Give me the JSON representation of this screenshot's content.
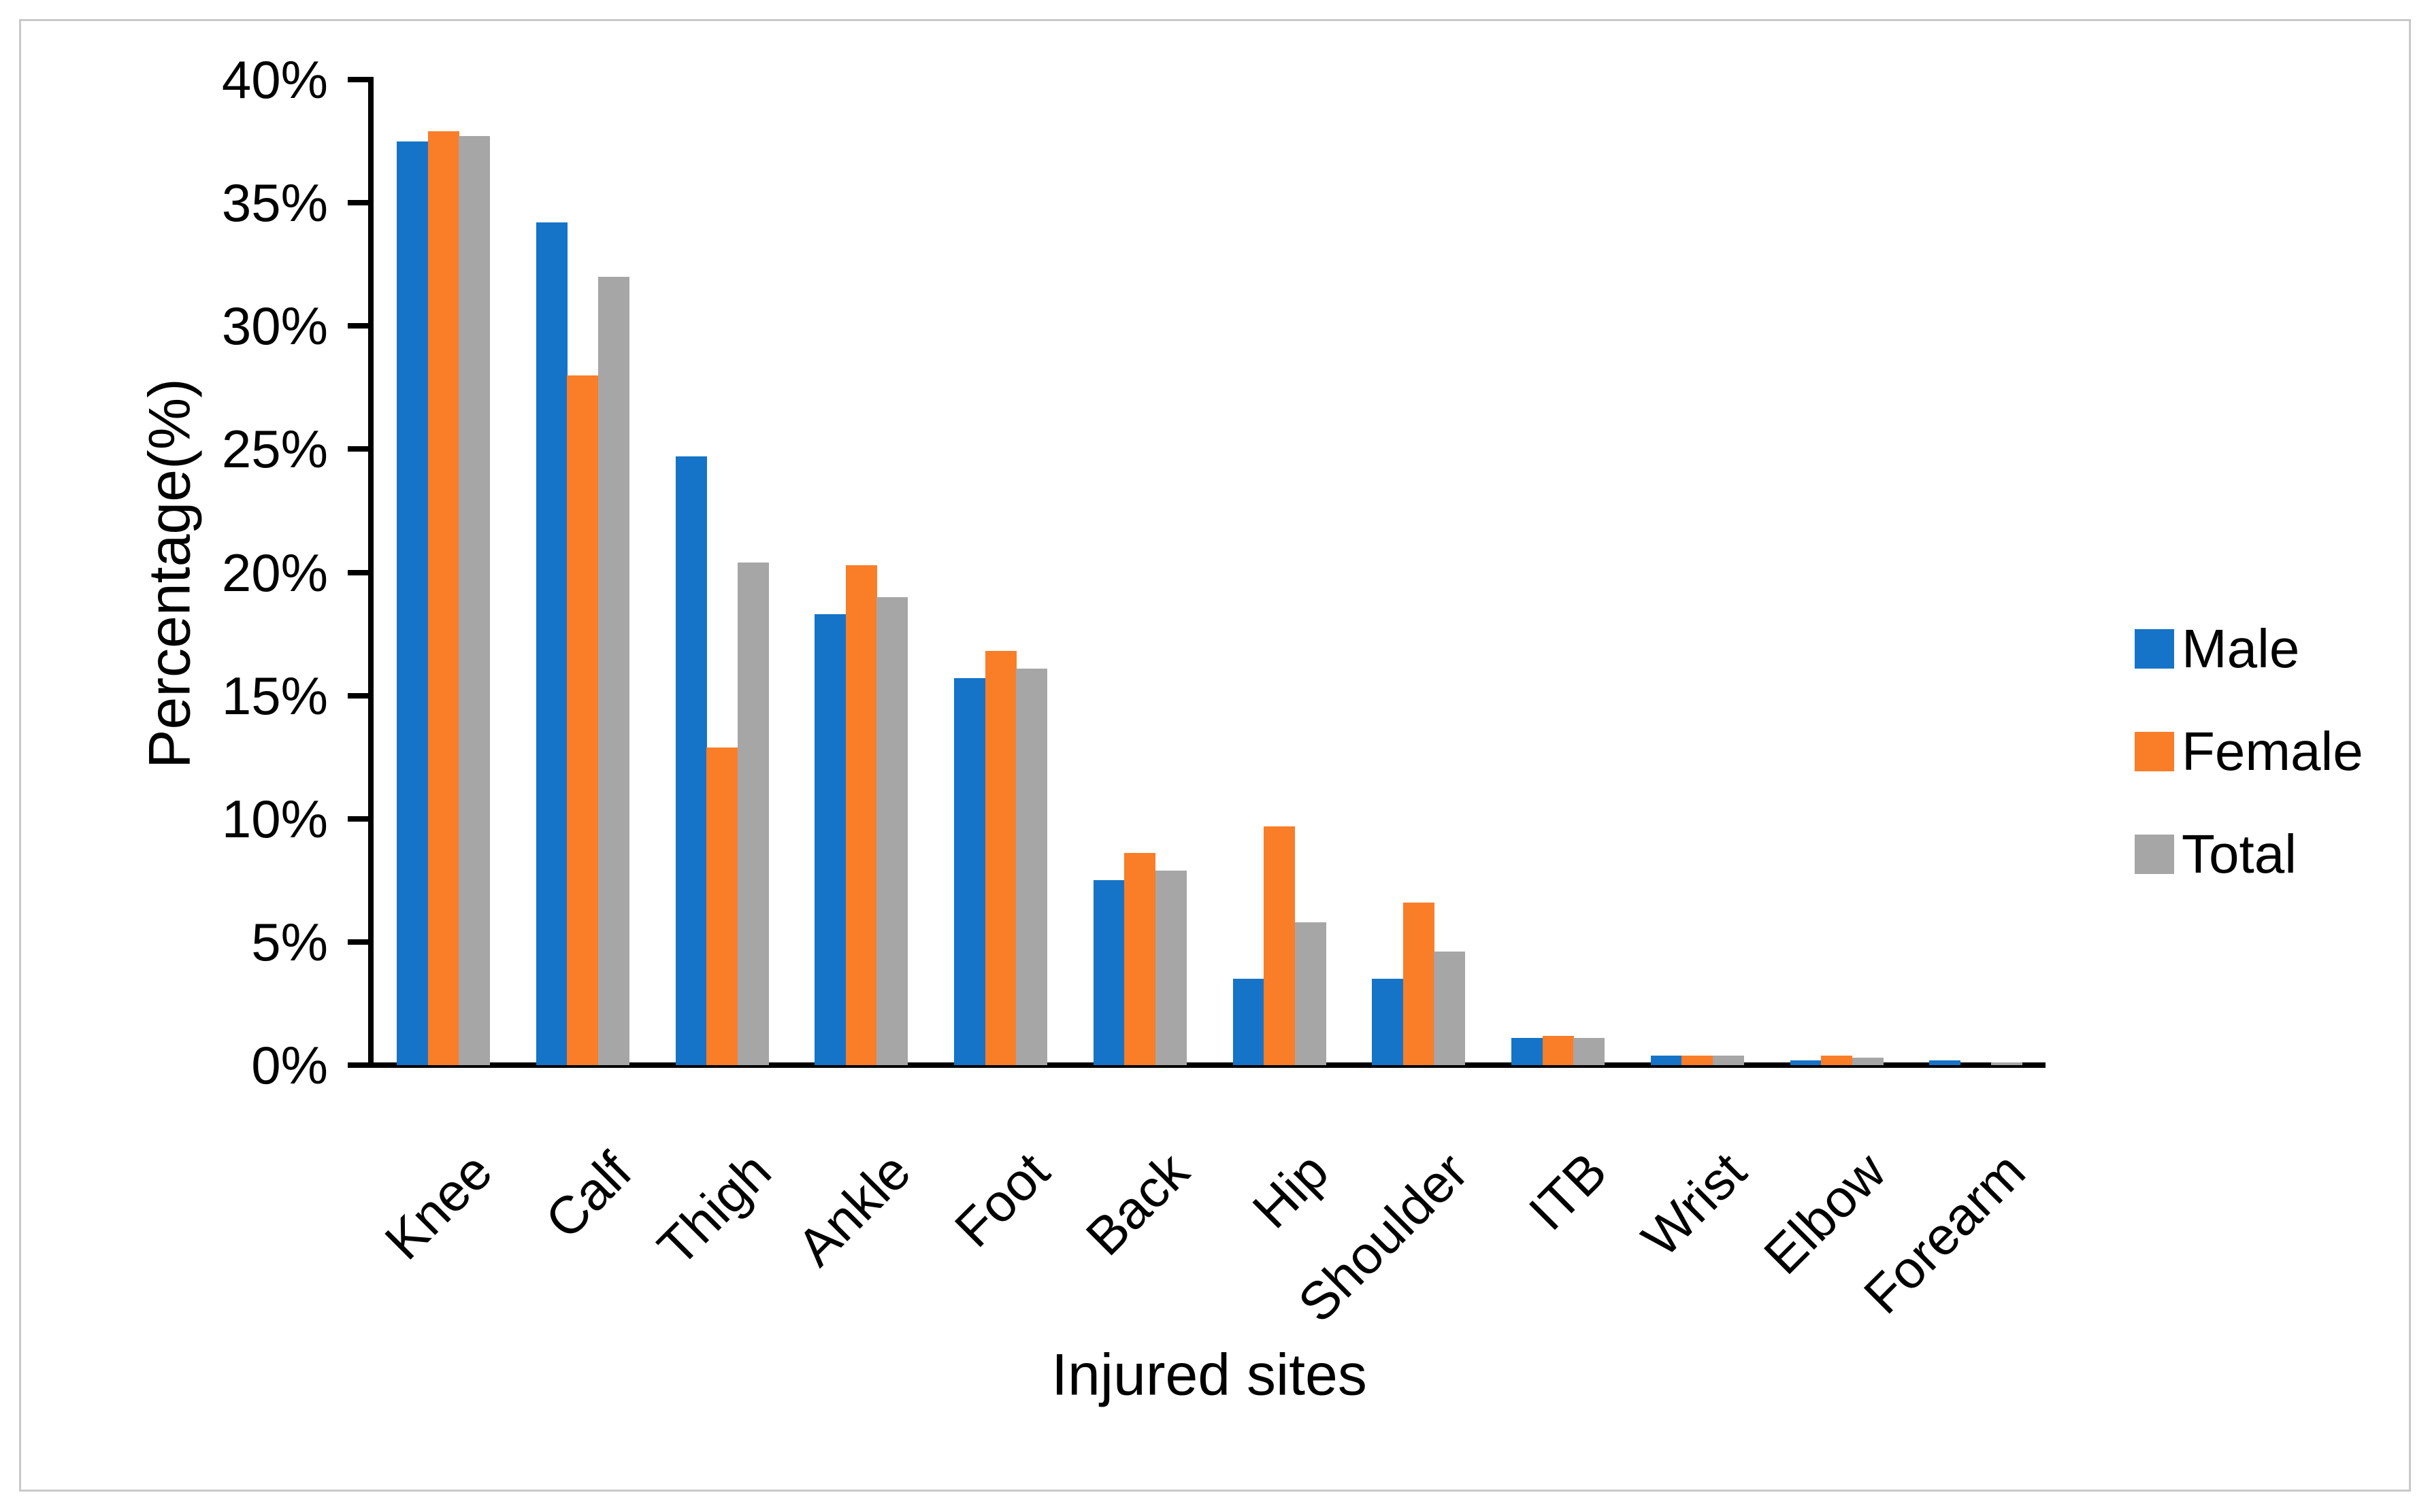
{
  "figure": {
    "background": "#FFFFFF",
    "border_color": "#C9C9C9"
  },
  "chart_data": {
    "type": "bar",
    "title": "",
    "xlabel": "Injured sites",
    "ylabel": "Percentage(%)",
    "categories": [
      "Knee",
      "Calf",
      "Thigh",
      "Ankle",
      "Foot",
      "Back",
      "Hip",
      "Shoulder",
      "ITB",
      "Wrist",
      "Elbow",
      "Forearm"
    ],
    "series": [
      {
        "name": "Male",
        "color": "#1574C7",
        "values": [
          37.5,
          34.2,
          24.7,
          18.3,
          15.7,
          7.5,
          3.5,
          3.5,
          1.1,
          0.4,
          0.2,
          0.2
        ]
      },
      {
        "name": "Female",
        "color": "#FA7D28",
        "values": [
          37.9,
          28.0,
          12.9,
          20.3,
          16.8,
          8.6,
          9.7,
          6.6,
          1.2,
          0.4,
          0.4,
          0.0
        ]
      },
      {
        "name": "Total",
        "color": "#A6A6A6",
        "values": [
          37.7,
          32.0,
          20.4,
          19.0,
          16.1,
          7.9,
          5.8,
          4.6,
          1.1,
          0.4,
          0.3,
          0.1
        ]
      }
    ],
    "y_axis": {
      "min": 0,
      "max": 40,
      "step": 5,
      "tick_labels": [
        "0%",
        "5%",
        "10%",
        "15%",
        "20%",
        "25%",
        "30%",
        "35%",
        "40%"
      ]
    },
    "legend": {
      "position": "right",
      "entries": [
        "Male",
        "Female",
        "Total"
      ]
    },
    "grid": false,
    "bar_group_gap": "narrow",
    "category_label_rotation_deg": -45
  }
}
